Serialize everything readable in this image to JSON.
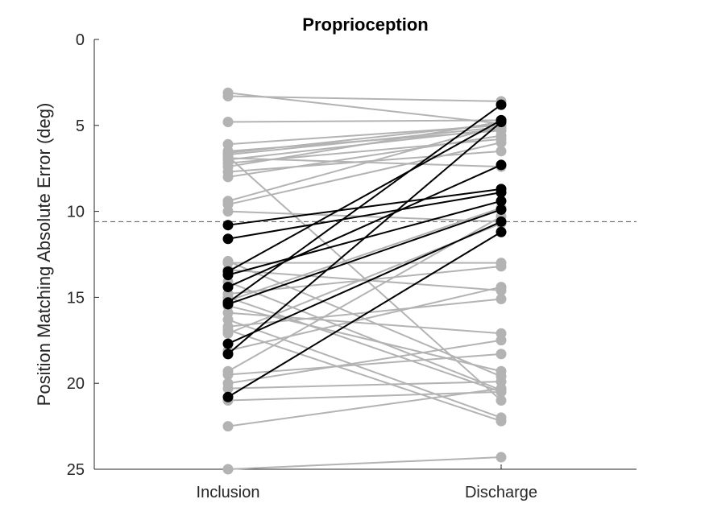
{
  "chart_data": {
    "type": "line",
    "title": "Proprioception",
    "xlabel": "",
    "ylabel": "Position Matching Absolute Error (deg)",
    "categories": [
      "Inclusion",
      "Discharge"
    ],
    "ylim": [
      0,
      25
    ],
    "y_reversed": true,
    "yticks": [
      0,
      5,
      10,
      15,
      20,
      25
    ],
    "grid": false,
    "legend": "none",
    "reference_line": {
      "y": 10.6,
      "style": "dashed"
    },
    "colors": {
      "improved": "#000000",
      "other": "#b3b3b3",
      "axis": "#262626"
    },
    "groups": {
      "other": [
        [
          3.1,
          4.9
        ],
        [
          3.3,
          3.6
        ],
        [
          4.8,
          4.7
        ],
        [
          6.1,
          5.0
        ],
        [
          6.5,
          5.3
        ],
        [
          6.6,
          4.9
        ],
        [
          6.7,
          5.1
        ],
        [
          6.9,
          7.4
        ],
        [
          7.0,
          5.2
        ],
        [
          7.2,
          5.8
        ],
        [
          7.4,
          4.8
        ],
        [
          7.7,
          6.5
        ],
        [
          8.0,
          5.6
        ],
        [
          9.4,
          5.0
        ],
        [
          9.6,
          6.0
        ],
        [
          10.0,
          10.6
        ],
        [
          6.8,
          21.0
        ],
        [
          13.0,
          13.0
        ],
        [
          13.4,
          14.6
        ],
        [
          14.1,
          20.4
        ],
        [
          15.0,
          20.5
        ],
        [
          15.2,
          9.8
        ],
        [
          15.5,
          19.3
        ],
        [
          15.9,
          17.1
        ],
        [
          16.3,
          22.0
        ],
        [
          16.7,
          15.1
        ],
        [
          16.9,
          22.2
        ],
        [
          17.1,
          10.7
        ],
        [
          19.3,
          10.3
        ],
        [
          19.5,
          18.3
        ],
        [
          20.0,
          17.5
        ],
        [
          20.3,
          19.9
        ],
        [
          21.0,
          20.5
        ],
        [
          22.5,
          20.3
        ],
        [
          25.0,
          24.3
        ],
        [
          14.8,
          13.2
        ],
        [
          18.1,
          14.4
        ],
        [
          12.9,
          19.6
        ]
      ],
      "improved": [
        [
          10.8,
          8.7
        ],
        [
          11.6,
          8.9
        ],
        [
          13.5,
          4.7
        ],
        [
          13.7,
          9.4
        ],
        [
          14.4,
          7.3
        ],
        [
          15.4,
          9.9
        ],
        [
          15.3,
          3.8
        ],
        [
          17.7,
          10.6
        ],
        [
          18.3,
          4.8
        ],
        [
          20.8,
          11.2
        ]
      ]
    }
  }
}
